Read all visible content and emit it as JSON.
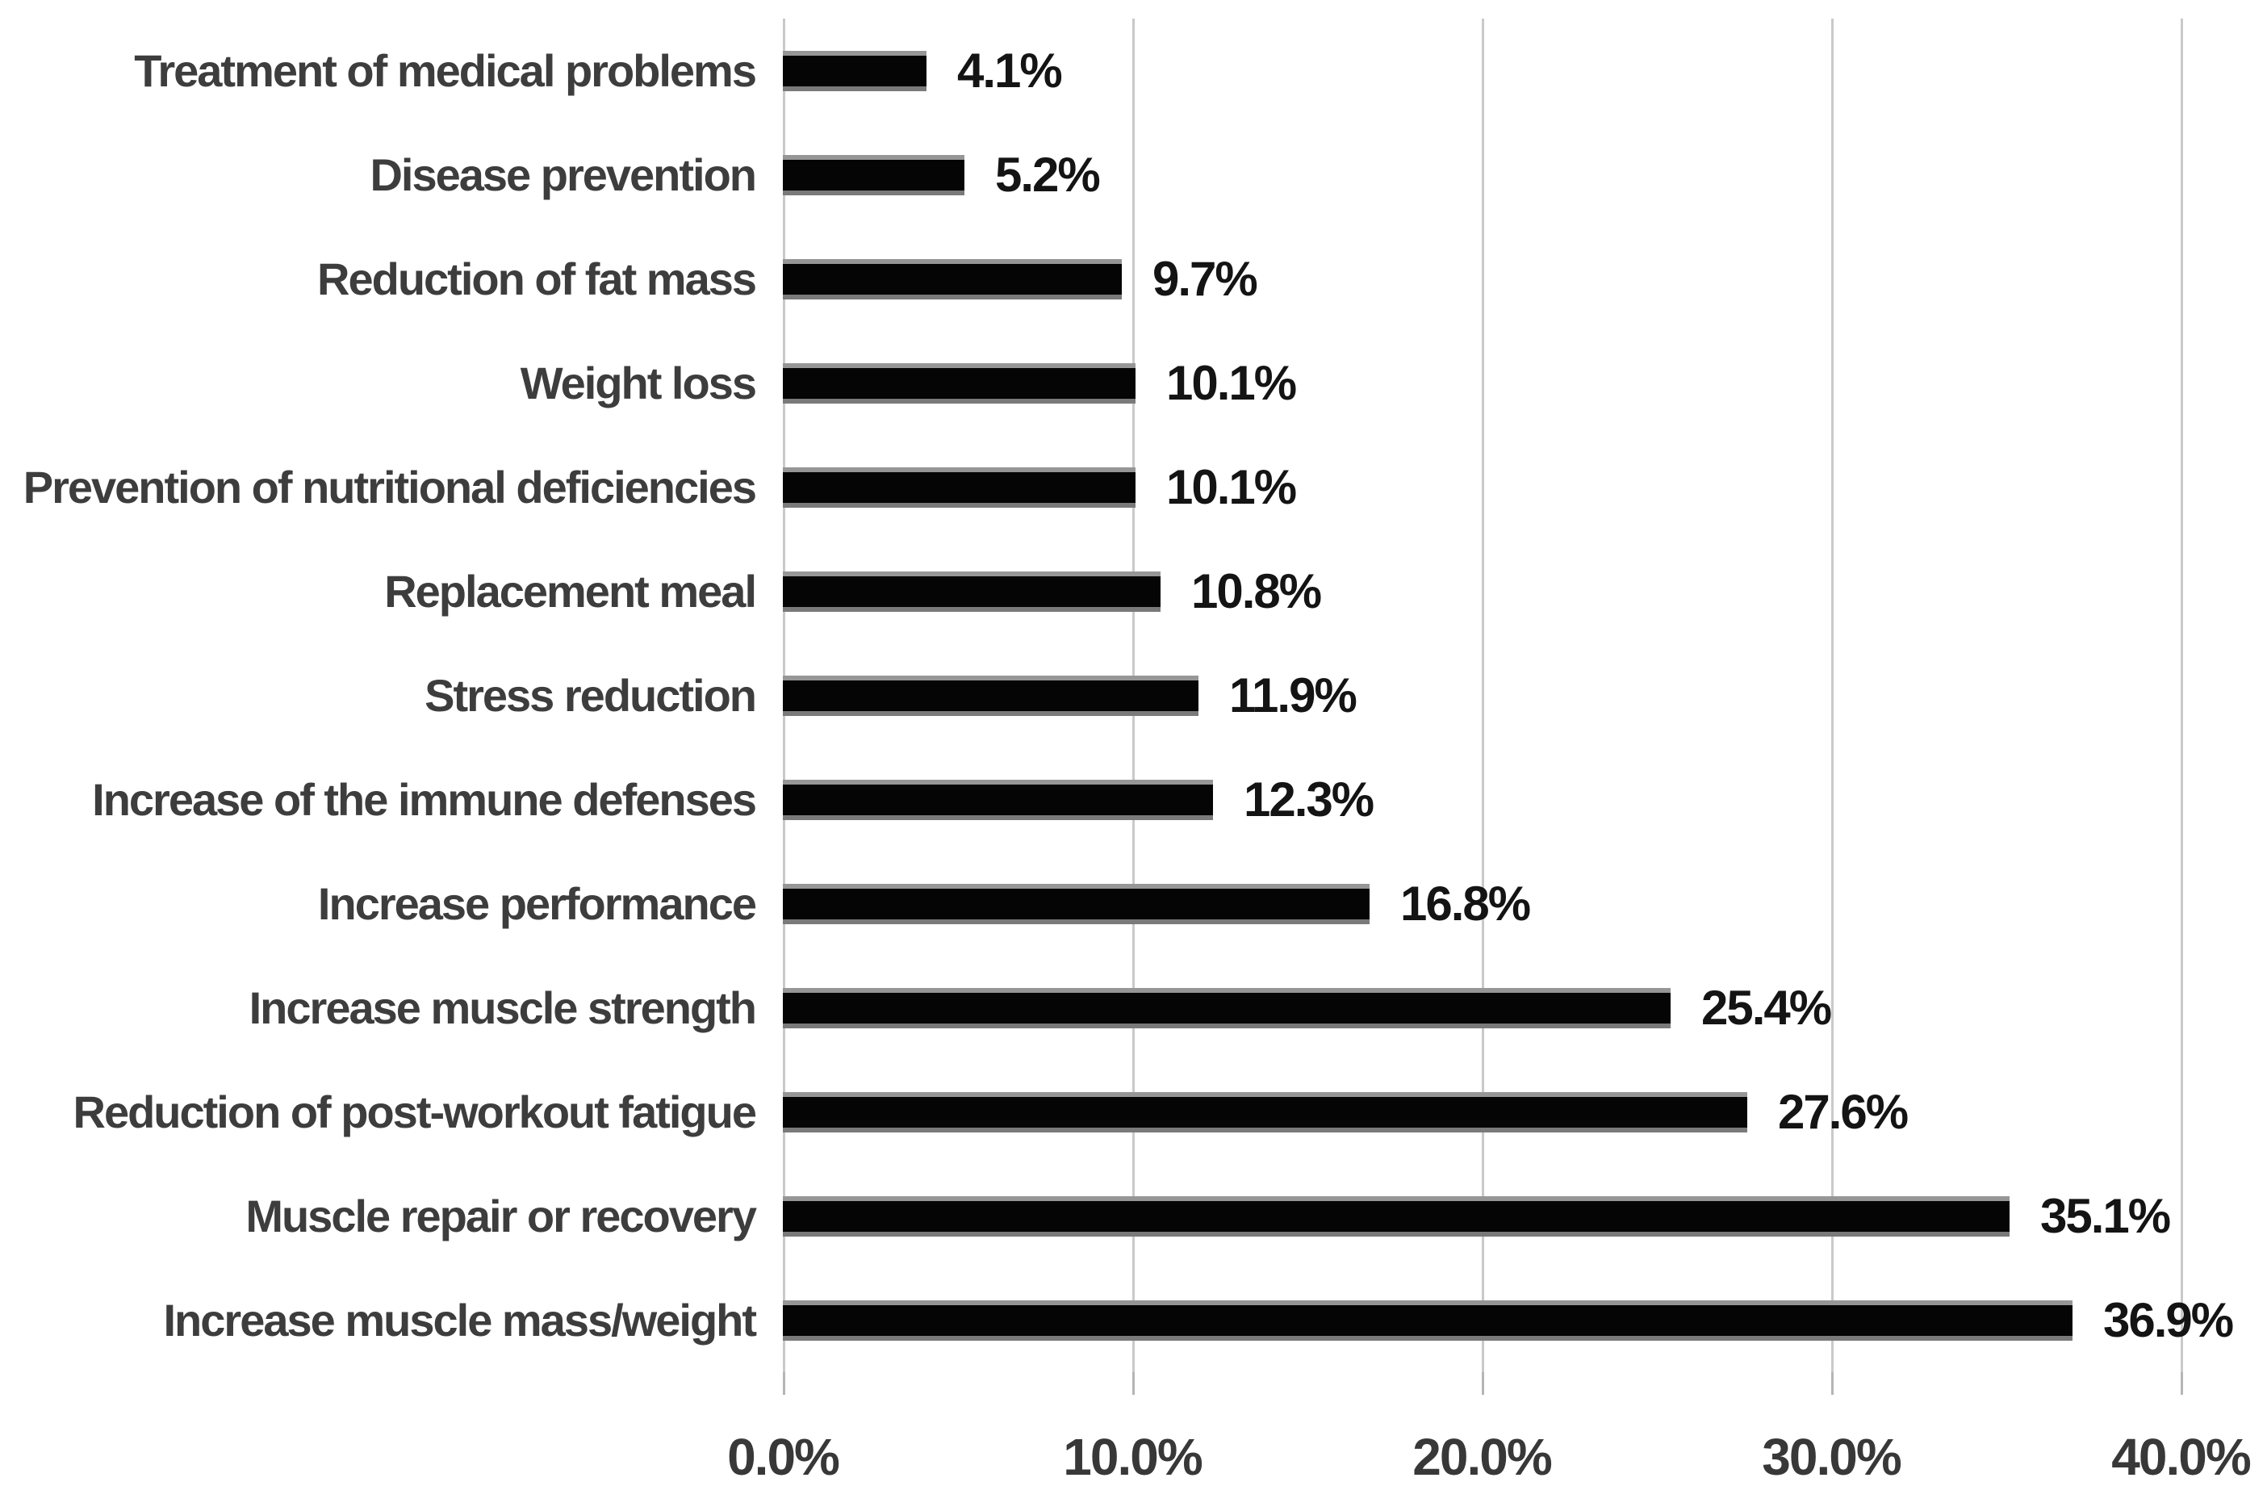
{
  "chart_data": {
    "type": "bar",
    "orientation": "horizontal",
    "title": "",
    "xlabel": "",
    "ylabel": "",
    "legend": null,
    "grid": "vertical",
    "categories": [
      "Treatment of medical problems",
      "Disease prevention",
      "Reduction of fat mass",
      "Weight loss",
      "Prevention of nutritional deficiencies",
      "Replacement meal",
      "Stress reduction",
      "Increase of the immune defenses",
      "Increase performance",
      "Increase muscle strength",
      "Reduction of post-workout fatigue",
      "Muscle repair or recovery",
      "Increase muscle mass/weight"
    ],
    "values": [
      4.1,
      5.2,
      9.7,
      10.1,
      10.1,
      10.8,
      11.9,
      12.3,
      16.8,
      25.4,
      27.6,
      35.1,
      36.9
    ],
    "value_labels": [
      "4.1%",
      "5.2%",
      "9.7%",
      "10.1%",
      "10.1%",
      "10.8%",
      "11.9%",
      "12.3%",
      "16.8%",
      "25.4%",
      "27.6%",
      "35.1%",
      "36.9%"
    ],
    "x_axis": {
      "min": 0,
      "max": 40,
      "ticks": [
        {
          "value": 0,
          "label": "0.0%"
        },
        {
          "value": 10,
          "label": "10.0%"
        },
        {
          "value": 20,
          "label": "20.0%"
        },
        {
          "value": 30,
          "label": "30.0%"
        },
        {
          "value": 40,
          "label": "40.0%"
        }
      ]
    },
    "colors": {
      "bar": "#050505",
      "bar_edge": "#8c8c8c",
      "gridline": "#c9c9c9",
      "category_text": "#3d3d3d",
      "value_text": "#141414",
      "tick_text": "#383838",
      "background": "#ffffff"
    }
  }
}
